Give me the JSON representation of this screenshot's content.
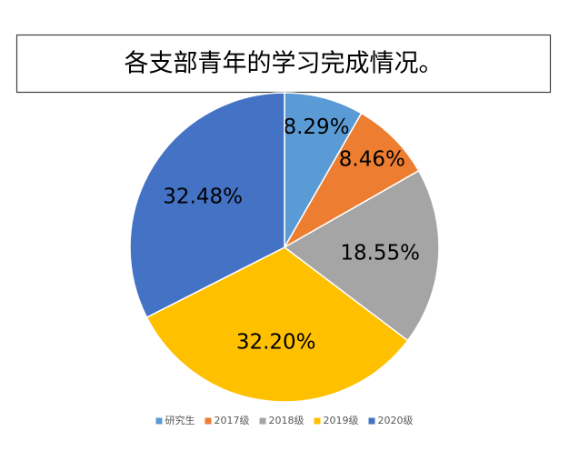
{
  "chart_data": {
    "type": "pie",
    "title": "各支部青年的学习完成情况。",
    "categories": [
      "研究生",
      "2017级",
      "2018级",
      "2019级",
      "2020级"
    ],
    "values": [
      8.29,
      8.46,
      18.55,
      32.2,
      32.48
    ],
    "value_labels": [
      "8.29%",
      "8.46%",
      "18.55%",
      "32.20%",
      "32.48%"
    ],
    "colors": [
      "#5b9bd5",
      "#ed7d31",
      "#a5a5a5",
      "#ffc000",
      "#4472c4"
    ],
    "legend": "bottom"
  }
}
